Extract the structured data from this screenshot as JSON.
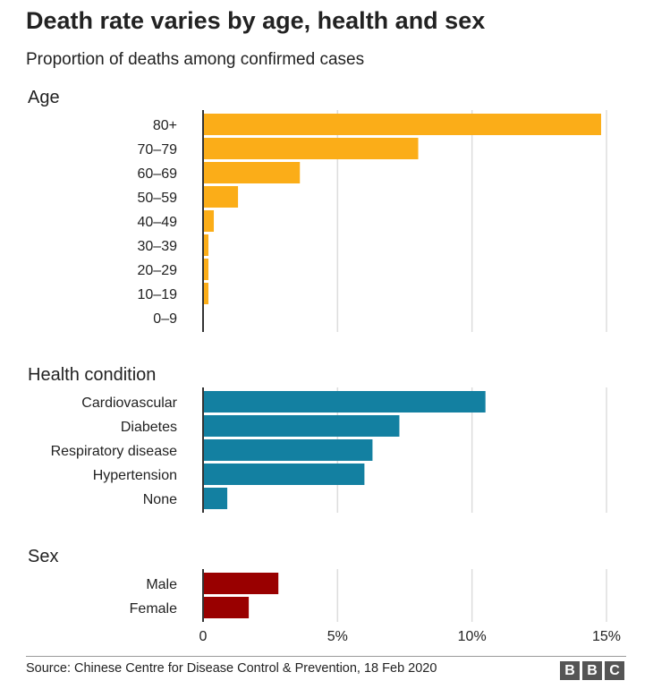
{
  "title": "Death rate varies by age, health and sex",
  "subtitle": "Proportion of deaths among confirmed cases",
  "source": "Source: Chinese Centre for Disease Control & Prevention, 18 Feb 2020",
  "logo": [
    "B",
    "B",
    "C"
  ],
  "chart_data": {
    "type": "bar",
    "orientation": "horizontal",
    "unit": "%",
    "xlim": [
      0,
      15
    ],
    "x_ticks": [
      0,
      5,
      10,
      15
    ],
    "x_tick_labels": [
      "0",
      "5%",
      "10%",
      "15%"
    ],
    "grid": true,
    "groups": [
      {
        "name": "Age",
        "color": "#fbad18",
        "categories": [
          "80+",
          "70–79",
          "60–69",
          "50–59",
          "40–49",
          "30–39",
          "20–29",
          "10–19",
          "0–9"
        ],
        "values": [
          14.8,
          8.0,
          3.6,
          1.3,
          0.4,
          0.2,
          0.2,
          0.2,
          0
        ]
      },
      {
        "name": "Health condition",
        "color": "#1380a1",
        "categories": [
          "Cardiovascular",
          "Diabetes",
          "Respiratory disease",
          "Hypertension",
          "None"
        ],
        "values": [
          10.5,
          7.3,
          6.3,
          6.0,
          0.9
        ]
      },
      {
        "name": "Sex",
        "color": "#990000",
        "categories": [
          "Male",
          "Female"
        ],
        "values": [
          2.8,
          1.7
        ]
      }
    ]
  }
}
